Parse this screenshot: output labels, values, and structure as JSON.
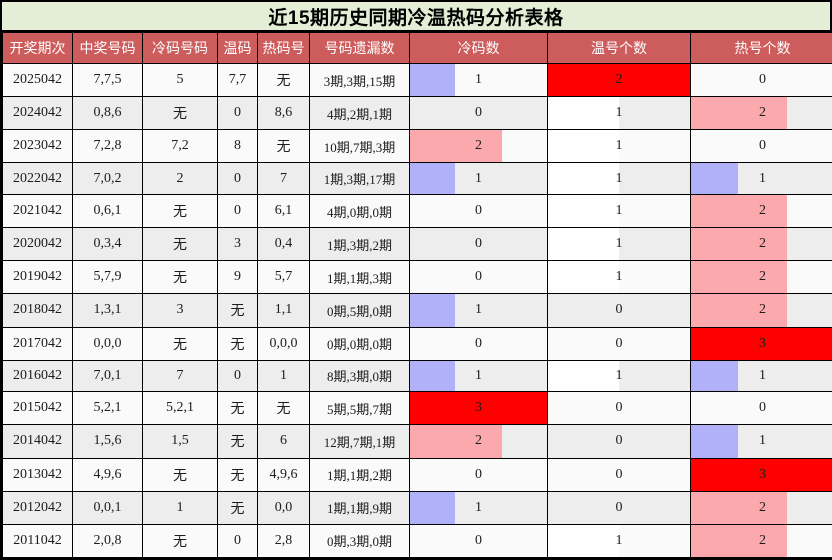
{
  "palette": {
    "title_bg": "#e4edd6",
    "header_bg": "#cd5c5c",
    "header_text": "#ffffff",
    "border": "#000000",
    "row_odd": "#fafafa",
    "row_even": "#ededed",
    "bar_blue": "#b1b1f9",
    "bar_pink": "#fba9ad",
    "bar_red": "#ff0000",
    "bar_white": "#ffffff"
  },
  "chart_data": {
    "type": "table",
    "title": "近15期历史同期冷温热码分析表格",
    "headers": [
      "开奖期次",
      "中奖号码",
      "冷码号码",
      "温码",
      "热码号",
      "号码遗漏数",
      "冷码数",
      "温号个数",
      "热号个数"
    ],
    "column_max": {
      "cold_count": 3,
      "warm_count": 2,
      "hot_count": 3
    },
    "bar_note": "bar length = value / column max; color scale blue(low)-white(mid)-pink-red(high)",
    "rows": [
      {
        "period": "2025042",
        "win": "7,7,5",
        "cold": "5",
        "warm": "7,7",
        "hot": "无",
        "omit": "3期,3期,15期",
        "cold_count": {
          "v": "1",
          "pct": 33,
          "c": "blue"
        },
        "warm_count": {
          "v": "2",
          "pct": 100,
          "c": "red"
        },
        "hot_count": {
          "v": "0",
          "pct": 0,
          "c": "none"
        }
      },
      {
        "period": "2024042",
        "win": "0,8,6",
        "cold": "无",
        "warm": "0",
        "hot": "8,6",
        "omit": "4期,2期,1期",
        "cold_count": {
          "v": "0",
          "pct": 0,
          "c": "none"
        },
        "warm_count": {
          "v": "1",
          "pct": 50,
          "c": "white"
        },
        "hot_count": {
          "v": "2",
          "pct": 67,
          "c": "pink"
        }
      },
      {
        "period": "2023042",
        "win": "7,2,8",
        "cold": "7,2",
        "warm": "8",
        "hot": "无",
        "omit": "10期,7期,3期",
        "cold_count": {
          "v": "2",
          "pct": 67,
          "c": "pink"
        },
        "warm_count": {
          "v": "1",
          "pct": 50,
          "c": "white"
        },
        "hot_count": {
          "v": "0",
          "pct": 0,
          "c": "none"
        }
      },
      {
        "period": "2022042",
        "win": "7,0,2",
        "cold": "2",
        "warm": "0",
        "hot": "7",
        "omit": "1期,3期,17期",
        "cold_count": {
          "v": "1",
          "pct": 33,
          "c": "blue"
        },
        "warm_count": {
          "v": "1",
          "pct": 50,
          "c": "white"
        },
        "hot_count": {
          "v": "1",
          "pct": 33,
          "c": "blue"
        }
      },
      {
        "period": "2021042",
        "win": "0,6,1",
        "cold": "无",
        "warm": "0",
        "hot": "6,1",
        "omit": "4期,0期,0期",
        "cold_count": {
          "v": "0",
          "pct": 0,
          "c": "none"
        },
        "warm_count": {
          "v": "1",
          "pct": 50,
          "c": "white"
        },
        "hot_count": {
          "v": "2",
          "pct": 67,
          "c": "pink"
        }
      },
      {
        "period": "2020042",
        "win": "0,3,4",
        "cold": "无",
        "warm": "3",
        "hot": "0,4",
        "omit": "1期,3期,2期",
        "cold_count": {
          "v": "0",
          "pct": 0,
          "c": "none"
        },
        "warm_count": {
          "v": "1",
          "pct": 50,
          "c": "white"
        },
        "hot_count": {
          "v": "2",
          "pct": 67,
          "c": "pink"
        }
      },
      {
        "period": "2019042",
        "win": "5,7,9",
        "cold": "无",
        "warm": "9",
        "hot": "5,7",
        "omit": "1期,1期,3期",
        "cold_count": {
          "v": "0",
          "pct": 0,
          "c": "none"
        },
        "warm_count": {
          "v": "1",
          "pct": 50,
          "c": "white"
        },
        "hot_count": {
          "v": "2",
          "pct": 67,
          "c": "pink"
        }
      },
      {
        "period": "2018042",
        "win": "1,3,1",
        "cold": "3",
        "warm": "无",
        "hot": "1,1",
        "omit": "0期,5期,0期",
        "cold_count": {
          "v": "1",
          "pct": 33,
          "c": "blue"
        },
        "warm_count": {
          "v": "0",
          "pct": 0,
          "c": "none"
        },
        "hot_count": {
          "v": "2",
          "pct": 67,
          "c": "pink"
        }
      },
      {
        "period": "2017042",
        "win": "0,0,0",
        "cold": "无",
        "warm": "无",
        "hot": "0,0,0",
        "omit": "0期,0期,0期",
        "cold_count": {
          "v": "0",
          "pct": 0,
          "c": "none"
        },
        "warm_count": {
          "v": "0",
          "pct": 0,
          "c": "none"
        },
        "hot_count": {
          "v": "3",
          "pct": 100,
          "c": "red"
        }
      },
      {
        "period": "2016042",
        "win": "7,0,1",
        "cold": "7",
        "warm": "0",
        "hot": "1",
        "omit": "8期,3期,0期",
        "cold_count": {
          "v": "1",
          "pct": 33,
          "c": "blue"
        },
        "warm_count": {
          "v": "1",
          "pct": 50,
          "c": "white"
        },
        "hot_count": {
          "v": "1",
          "pct": 33,
          "c": "blue"
        }
      },
      {
        "period": "2015042",
        "win": "5,2,1",
        "cold": "5,2,1",
        "warm": "无",
        "hot": "无",
        "omit": "5期,5期,7期",
        "cold_count": {
          "v": "3",
          "pct": 100,
          "c": "red"
        },
        "warm_count": {
          "v": "0",
          "pct": 0,
          "c": "none"
        },
        "hot_count": {
          "v": "0",
          "pct": 0,
          "c": "none"
        }
      },
      {
        "period": "2014042",
        "win": "1,5,6",
        "cold": "1,5",
        "warm": "无",
        "hot": "6",
        "omit": "12期,7期,1期",
        "cold_count": {
          "v": "2",
          "pct": 67,
          "c": "pink"
        },
        "warm_count": {
          "v": "0",
          "pct": 0,
          "c": "none"
        },
        "hot_count": {
          "v": "1",
          "pct": 33,
          "c": "blue"
        }
      },
      {
        "period": "2013042",
        "win": "4,9,6",
        "cold": "无",
        "warm": "无",
        "hot": "4,9,6",
        "omit": "1期,1期,2期",
        "cold_count": {
          "v": "0",
          "pct": 0,
          "c": "none"
        },
        "warm_count": {
          "v": "0",
          "pct": 0,
          "c": "none"
        },
        "hot_count": {
          "v": "3",
          "pct": 100,
          "c": "red"
        }
      },
      {
        "period": "2012042",
        "win": "0,0,1",
        "cold": "1",
        "warm": "无",
        "hot": "0,0",
        "omit": "1期,1期,9期",
        "cold_count": {
          "v": "1",
          "pct": 33,
          "c": "blue"
        },
        "warm_count": {
          "v": "0",
          "pct": 0,
          "c": "none"
        },
        "hot_count": {
          "v": "2",
          "pct": 67,
          "c": "pink"
        }
      },
      {
        "period": "2011042",
        "win": "2,0,8",
        "cold": "无",
        "warm": "0",
        "hot": "2,8",
        "omit": "0期,3期,0期",
        "cold_count": {
          "v": "0",
          "pct": 0,
          "c": "none"
        },
        "warm_count": {
          "v": "1",
          "pct": 50,
          "c": "white"
        },
        "hot_count": {
          "v": "2",
          "pct": 67,
          "c": "pink"
        }
      }
    ]
  }
}
